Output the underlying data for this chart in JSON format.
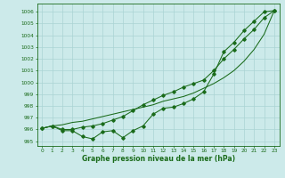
{
  "x": [
    0,
    1,
    2,
    3,
    4,
    5,
    6,
    7,
    8,
    9,
    10,
    11,
    12,
    13,
    14,
    15,
    16,
    17,
    18,
    19,
    20,
    21,
    22,
    23
  ],
  "line_jagged": [
    996.1,
    996.3,
    995.9,
    995.9,
    995.4,
    995.2,
    995.8,
    995.9,
    995.3,
    995.9,
    996.3,
    997.3,
    997.8,
    997.9,
    998.2,
    998.6,
    999.2,
    1000.7,
    1002.6,
    1003.4,
    1004.4,
    1005.2,
    1006.0,
    1006.1
  ],
  "line_straight": [
    996.1,
    996.3,
    996.4,
    996.6,
    996.7,
    996.9,
    997.1,
    997.3,
    997.5,
    997.7,
    997.9,
    998.1,
    998.4,
    998.6,
    998.8,
    999.1,
    999.5,
    999.9,
    1000.4,
    1001.0,
    1001.8,
    1002.8,
    1004.1,
    1006.1
  ],
  "line_curved": [
    996.1,
    996.3,
    996.0,
    996.0,
    996.2,
    996.3,
    996.5,
    996.8,
    997.1,
    997.6,
    998.1,
    998.5,
    998.9,
    999.2,
    999.6,
    999.9,
    1000.2,
    1001.0,
    1002.0,
    1002.8,
    1003.7,
    1004.5,
    1005.5,
    1006.1
  ],
  "bg_color": "#cceaea",
  "grid_color": "#aad4d4",
  "line_color": "#1a6b1a",
  "ylabel_vals": [
    995,
    996,
    997,
    998,
    999,
    1000,
    1001,
    1002,
    1003,
    1004,
    1005,
    1006
  ],
  "xlabel": "Graphe pression niveau de la mer (hPa)",
  "ylim": [
    994.6,
    1006.7
  ],
  "xlim": [
    -0.5,
    23.5
  ],
  "figsize": [
    3.2,
    2.0
  ],
  "dpi": 100
}
